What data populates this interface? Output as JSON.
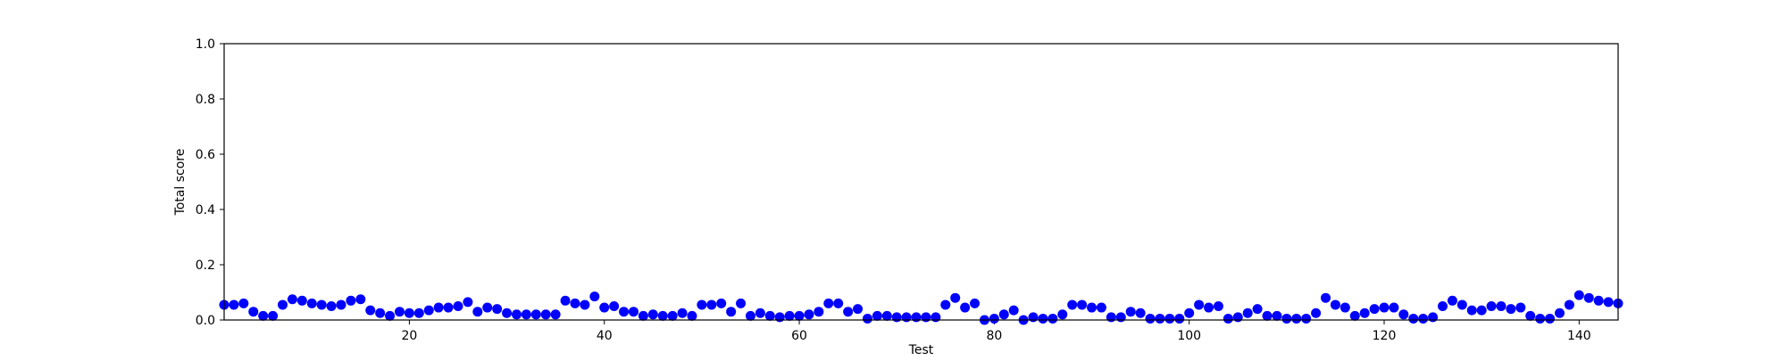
{
  "chart_data": {
    "type": "scatter",
    "xlabel": "Test",
    "ylabel": "Total score",
    "xlim": [
      1,
      144
    ],
    "ylim": [
      0.0,
      1.0
    ],
    "x_ticks": [
      "20",
      "40",
      "60",
      "80",
      "100",
      "120",
      "140"
    ],
    "x_tick_values": [
      20,
      40,
      60,
      80,
      100,
      120,
      140
    ],
    "y_ticks": [
      "0.0",
      "0.2",
      "0.4",
      "0.6",
      "0.8",
      "1.0"
    ],
    "y_tick_values": [
      0.0,
      0.2,
      0.4,
      0.6,
      0.8,
      1.0
    ],
    "grid": false,
    "marker_color": "#0000ff",
    "series": [
      {
        "x": [
          1,
          2,
          3,
          4,
          5,
          6,
          7,
          8,
          9,
          10,
          11,
          12,
          13,
          14,
          15,
          16,
          17,
          18,
          19,
          20,
          21,
          22,
          23,
          24,
          25,
          26,
          27,
          28,
          29,
          30,
          31,
          32,
          33,
          34,
          35,
          36,
          37,
          38,
          39,
          40,
          41,
          42,
          43,
          44,
          45,
          46,
          47,
          48,
          49,
          50,
          51,
          52,
          53,
          54,
          55,
          56,
          57,
          58,
          59,
          60,
          61,
          62,
          63,
          64,
          65,
          66,
          67,
          68,
          69,
          70,
          71,
          72,
          73,
          74,
          75,
          76,
          77,
          78,
          79,
          80,
          81,
          82,
          83,
          84,
          85,
          86,
          87,
          88,
          89,
          90,
          91,
          92,
          93,
          94,
          95,
          96,
          97,
          98,
          99,
          100,
          101,
          102,
          103,
          104,
          105,
          106,
          107,
          108,
          109,
          110,
          111,
          112,
          113,
          114,
          115,
          116,
          117,
          118,
          119,
          120,
          121,
          122,
          123,
          124,
          125,
          126,
          127,
          128,
          129,
          130,
          131,
          132,
          133,
          134,
          135,
          136,
          137,
          138,
          139,
          140,
          141,
          142,
          143,
          144
        ],
        "y": [
          0.055,
          0.055,
          0.06,
          0.03,
          0.015,
          0.015,
          0.055,
          0.075,
          0.07,
          0.06,
          0.055,
          0.05,
          0.055,
          0.07,
          0.075,
          0.035,
          0.025,
          0.015,
          0.03,
          0.025,
          0.025,
          0.035,
          0.045,
          0.045,
          0.05,
          0.065,
          0.03,
          0.045,
          0.04,
          0.025,
          0.02,
          0.02,
          0.02,
          0.02,
          0.02,
          0.07,
          0.06,
          0.055,
          0.085,
          0.045,
          0.05,
          0.03,
          0.03,
          0.015,
          0.02,
          0.015,
          0.015,
          0.025,
          0.015,
          0.055,
          0.055,
          0.06,
          0.03,
          0.06,
          0.015,
          0.025,
          0.015,
          0.01,
          0.015,
          0.015,
          0.02,
          0.03,
          0.06,
          0.06,
          0.03,
          0.04,
          0.005,
          0.015,
          0.015,
          0.01,
          0.01,
          0.01,
          0.01,
          0.01,
          0.055,
          0.08,
          0.045,
          0.06,
          0.0,
          0.005,
          0.02,
          0.035,
          0.0,
          0.01,
          0.005,
          0.005,
          0.02,
          0.055,
          0.055,
          0.045,
          0.045,
          0.01,
          0.01,
          0.03,
          0.025,
          0.005,
          0.005,
          0.005,
          0.005,
          0.025,
          0.055,
          0.045,
          0.05,
          0.005,
          0.01,
          0.025,
          0.04,
          0.015,
          0.015,
          0.005,
          0.005,
          0.005,
          0.025,
          0.08,
          0.055,
          0.045,
          0.015,
          0.025,
          0.04,
          0.045,
          0.045,
          0.02,
          0.005,
          0.005,
          0.01,
          0.05,
          0.07,
          0.055,
          0.035,
          0.035,
          0.05,
          0.05,
          0.04,
          0.045,
          0.015,
          0.005,
          0.005,
          0.025,
          0.055,
          0.09,
          0.08,
          0.07,
          0.065,
          0.06
        ]
      }
    ]
  }
}
